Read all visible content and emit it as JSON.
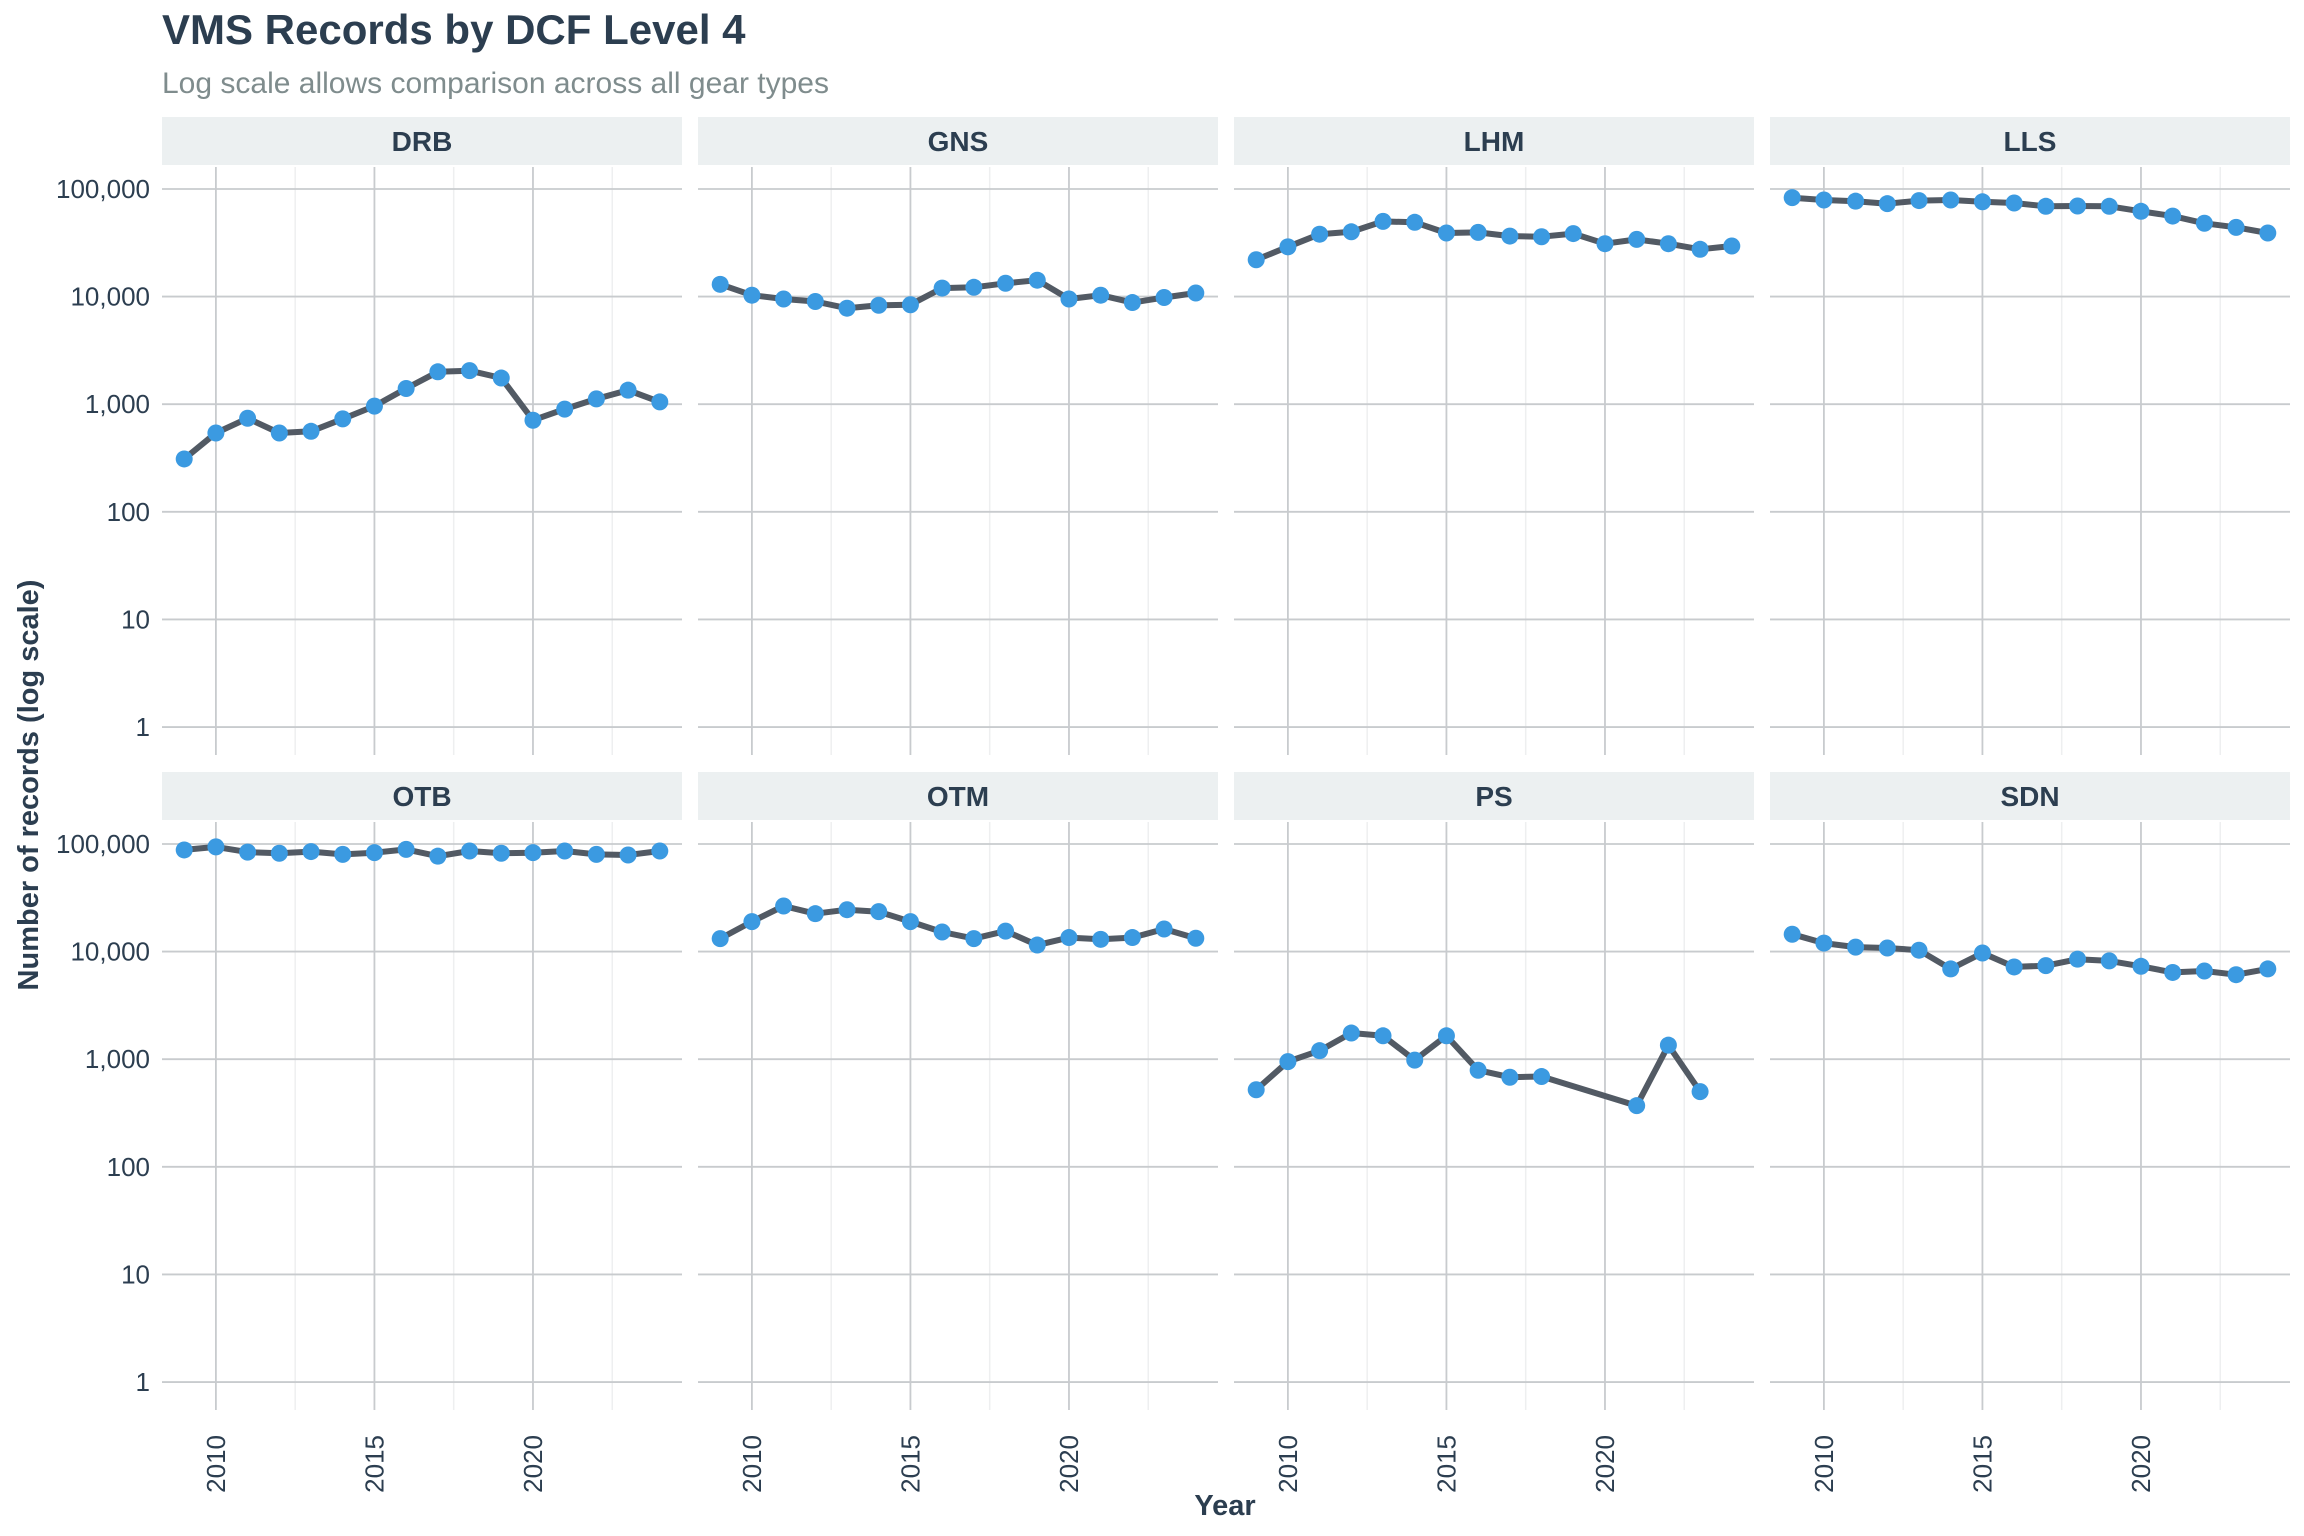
{
  "title": "VMS Records by DCF Level 4",
  "subtitle": "Log scale allows comparison across all gear types",
  "x_axis_title": "Year",
  "y_axis_title": "Number of records (log scale)",
  "colors": {
    "line": "#525a64",
    "point": "#3b9ae1",
    "strip": "#ecf0f1",
    "grid_major": "#c8cbce",
    "grid_minor": "#eeeff0",
    "text": "#2c3e50"
  },
  "chart_data": {
    "type": "line",
    "facets": true,
    "xlim": [
      2008.3,
      2024.7
    ],
    "y_scale": "log10",
    "ylim": [
      0.55,
      160000
    ],
    "x_ticks": [
      2010,
      2015,
      2020
    ],
    "x_tick_labels": [
      "2010",
      "2015",
      "2020"
    ],
    "y_ticks": [
      1,
      10,
      100,
      1000,
      10000,
      100000
    ],
    "y_tick_labels": [
      "1",
      "10",
      "100",
      "1,000",
      "10,000",
      "100,000"
    ],
    "grid": true,
    "panels": [
      {
        "label": "DRB",
        "x": [
          2009,
          2010,
          2011,
          2012,
          2013,
          2014,
          2015,
          2016,
          2017,
          2018,
          2019,
          2020,
          2021,
          2022,
          2023,
          2024
        ],
        "y": [
          310,
          540,
          740,
          540,
          560,
          730,
          960,
          1400,
          2000,
          2050,
          1750,
          710,
          900,
          1120,
          1350,
          1050
        ]
      },
      {
        "label": "GNS",
        "x": [
          2009,
          2010,
          2011,
          2012,
          2013,
          2014,
          2015,
          2016,
          2017,
          2018,
          2019,
          2020,
          2021,
          2022,
          2023,
          2024
        ],
        "y": [
          13000,
          10300,
          9500,
          9000,
          7800,
          8300,
          8400,
          12000,
          12200,
          13300,
          14200,
          9500,
          10300,
          8800,
          9800,
          10800
        ]
      },
      {
        "label": "LHM",
        "x": [
          2009,
          2010,
          2011,
          2012,
          2013,
          2014,
          2015,
          2016,
          2017,
          2018,
          2019,
          2020,
          2021,
          2022,
          2023,
          2024
        ],
        "y": [
          22000,
          29000,
          38000,
          40000,
          50000,
          49000,
          39000,
          39500,
          36500,
          36000,
          38500,
          31000,
          34000,
          31000,
          27500,
          29500
        ]
      },
      {
        "label": "LLS",
        "x": [
          2009,
          2010,
          2011,
          2012,
          2013,
          2014,
          2015,
          2016,
          2017,
          2018,
          2019,
          2020,
          2021,
          2022,
          2023,
          2024
        ],
        "y": [
          83000,
          79000,
          77000,
          73000,
          78000,
          79000,
          76000,
          74000,
          69000,
          69500,
          69000,
          62000,
          56000,
          48000,
          44000,
          39000
        ]
      },
      {
        "label": "OTB",
        "x": [
          2009,
          2010,
          2011,
          2012,
          2013,
          2014,
          2015,
          2016,
          2017,
          2018,
          2019,
          2020,
          2021,
          2022,
          2023,
          2024
        ],
        "y": [
          88000,
          94000,
          84000,
          82000,
          85000,
          80000,
          83000,
          89000,
          77000,
          86000,
          82000,
          83000,
          86000,
          80000,
          79000,
          86000
        ]
      },
      {
        "label": "OTM",
        "x": [
          2009,
          2010,
          2011,
          2012,
          2013,
          2014,
          2015,
          2016,
          2017,
          2018,
          2019,
          2020,
          2021,
          2022,
          2023,
          2024
        ],
        "y": [
          13200,
          19000,
          26500,
          22500,
          24500,
          23500,
          19000,
          15200,
          13200,
          15500,
          11500,
          13500,
          13000,
          13500,
          16200,
          13300
        ]
      },
      {
        "label": "PS",
        "x": [
          2009,
          2010,
          2011,
          2012,
          2013,
          2014,
          2015,
          2016,
          2017,
          2018,
          2021,
          2022,
          2023
        ],
        "y": [
          520,
          950,
          1200,
          1750,
          1650,
          980,
          1650,
          790,
          680,
          690,
          370,
          1350,
          500
        ]
      },
      {
        "label": "SDN",
        "x": [
          2009,
          2010,
          2011,
          2012,
          2013,
          2014,
          2015,
          2016,
          2017,
          2018,
          2019,
          2020,
          2021,
          2022,
          2023,
          2024
        ],
        "y": [
          14500,
          12000,
          11000,
          10800,
          10300,
          6900,
          9700,
          7200,
          7400,
          8500,
          8200,
          7300,
          6400,
          6600,
          6100,
          6900
        ]
      }
    ]
  }
}
